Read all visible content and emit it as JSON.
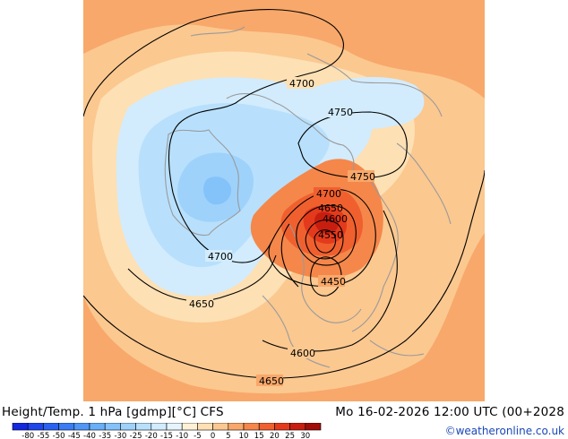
{
  "header": {
    "title": "Height/Temp. 1 hPa [gdmp][°C] CFS",
    "valid_time": "Mo 16-02-2026 12:00 UTC (00+2028"
  },
  "credit": "©weatheronline.co.uk",
  "contour_labels": [
    "4700",
    "4750",
    "4750",
    "4700",
    "4650",
    "4600",
    "4550",
    "4450",
    "4700",
    "4650",
    "4600",
    "4650"
  ],
  "colorbar": {
    "ticks": [
      "-80",
      "-55",
      "-50",
      "-45",
      "-40",
      "-35",
      "-30",
      "-25",
      "-20",
      "-15",
      "-10",
      "-5",
      "0",
      "5",
      "10",
      "15",
      "20",
      "25",
      "30"
    ],
    "colors": [
      "#1428e0",
      "#1e46ea",
      "#2a62f0",
      "#3a7cf4",
      "#5096f6",
      "#68aef8",
      "#84c2fa",
      "#9ed2fb",
      "#b8e0fc",
      "#d2ecfd",
      "#e6f4fe",
      "#fef2d6",
      "#fde0b4",
      "#fbc890",
      "#f8a86a",
      "#f5874a",
      "#f0602e",
      "#e43a1c",
      "#c81e10",
      "#a00c08"
    ]
  }
}
